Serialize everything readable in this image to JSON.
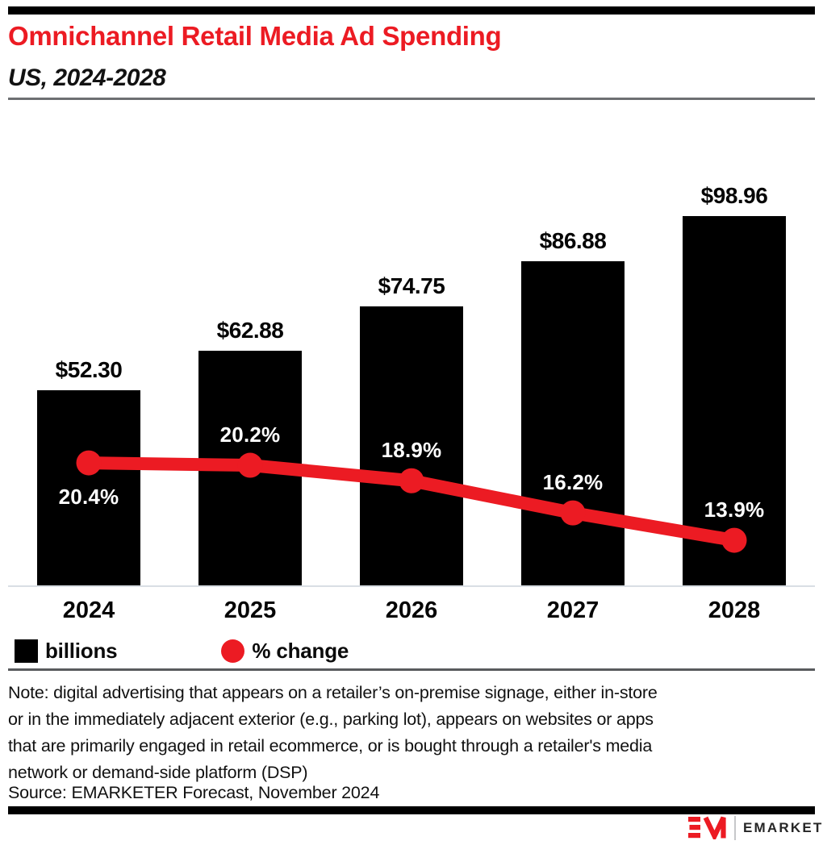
{
  "header": {
    "title": "Omnichannel Retail Media Ad Spending",
    "subtitle": "US, 2024-2028"
  },
  "chart_data": {
    "type": "bar",
    "subtype": "bar-with-line-overlay",
    "title": "Omnichannel Retail Media Ad Spending",
    "subtitle_region_period": "US, 2024-2028",
    "categories": [
      "2024",
      "2025",
      "2026",
      "2027",
      "2028"
    ],
    "series": [
      {
        "name": "billions",
        "type": "bar",
        "unit": "US$ billions",
        "values": [
          52.3,
          62.88,
          74.75,
          86.88,
          98.96
        ],
        "labels": [
          "$52.30",
          "$62.88",
          "$74.75",
          "$86.88",
          "$98.96"
        ],
        "color": "#000000"
      },
      {
        "name": "% change",
        "type": "line",
        "unit": "percent",
        "values": [
          20.4,
          20.2,
          18.9,
          16.2,
          13.9
        ],
        "labels": [
          "20.4%",
          "20.2%",
          "18.9%",
          "16.2%",
          "13.9%"
        ],
        "label_positions": [
          "below",
          "above",
          "above",
          "above",
          "above"
        ],
        "color": "#ec1b23"
      }
    ],
    "legend": [
      {
        "label": "billions",
        "swatch": "square",
        "color": "#000000"
      },
      {
        "label": "% change",
        "swatch": "circle",
        "color": "#ec1b23"
      }
    ],
    "legend_position": "bottom-left",
    "grid": false,
    "xlabel": "",
    "ylabel": ""
  },
  "footer": {
    "note_lines": [
      "Note: digital advertising that appears on a retailer’s on-premise signage, either in-store",
      "or in the immediately adjacent exterior (e.g., parking lot), appears on websites or apps",
      "that are primarily engaged in retail ecommerce, or is bought through a retailer's media",
      "network or demand-side platform (DSP)"
    ],
    "source": "Source: EMARKETER Forecast, November 2024"
  },
  "branding": {
    "logo_monogram": "EM",
    "logo_text": "EMARKETER"
  },
  "colors": {
    "accent_red": "#ec1b23",
    "bar_black": "#000000",
    "axis_line": "#d9dee4",
    "header_rule": "#6d6f72",
    "note_rule": "#595b5e",
    "logo_text": "#262626"
  }
}
